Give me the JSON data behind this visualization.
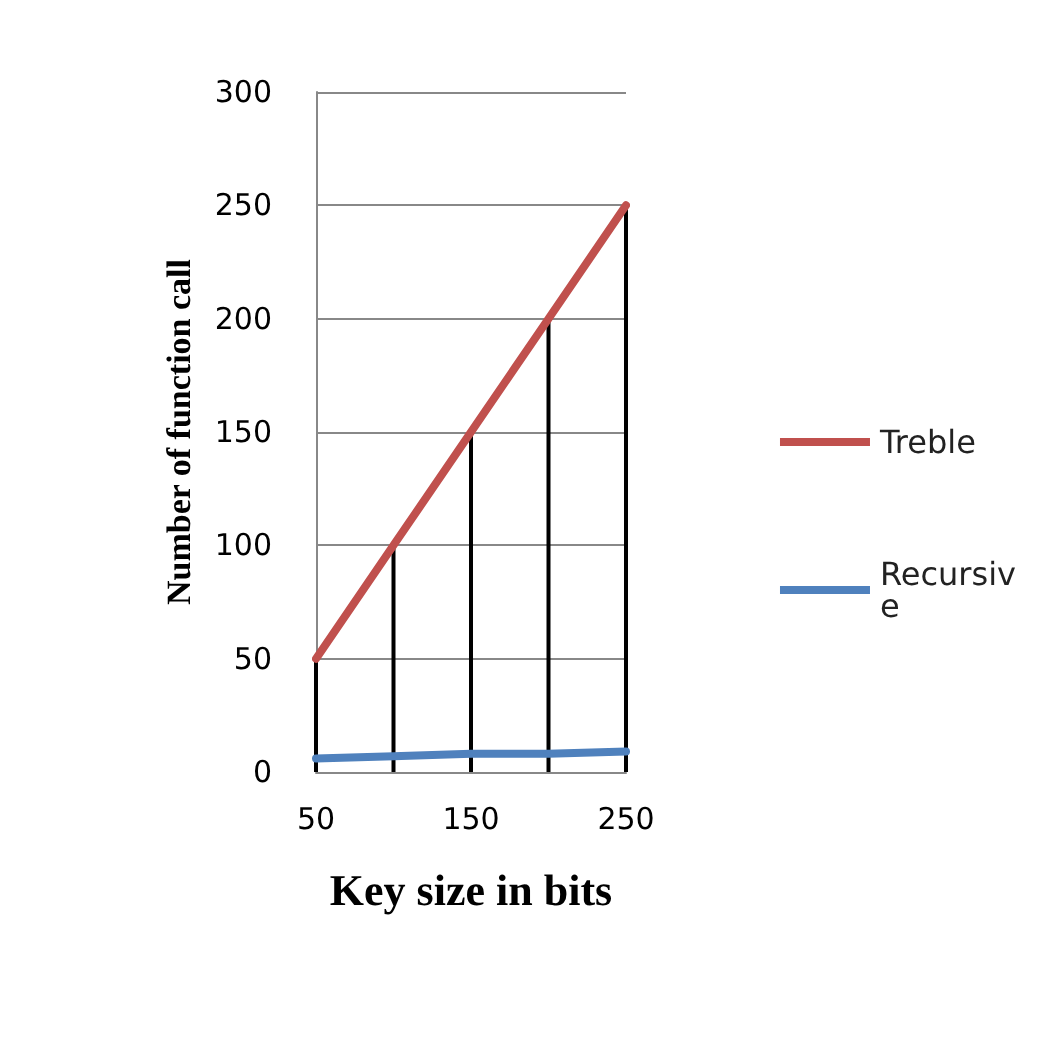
{
  "chart_data": {
    "type": "line",
    "xlabel": "Key size in bits",
    "ylabel": "Number of function call",
    "categories": [
      "50",
      null,
      "150",
      null,
      "250"
    ],
    "series": [
      {
        "name": "Treble",
        "color": "#c0504d",
        "values": [
          50,
          100,
          150,
          200,
          250
        ]
      },
      {
        "type": "bar",
        "color": "#000000",
        "values": [
          50,
          100,
          150,
          200,
          250
        ]
      },
      {
        "name": "Recursive",
        "color": "#4f81bd",
        "values": [
          6,
          7,
          8,
          8,
          9
        ]
      }
    ],
    "ylim": [
      0,
      300
    ],
    "yticks": [
      0,
      50,
      100,
      150,
      200,
      250,
      300
    ],
    "grid": "y",
    "legend": "right",
    "marker": "none",
    "line_style": "solid"
  }
}
